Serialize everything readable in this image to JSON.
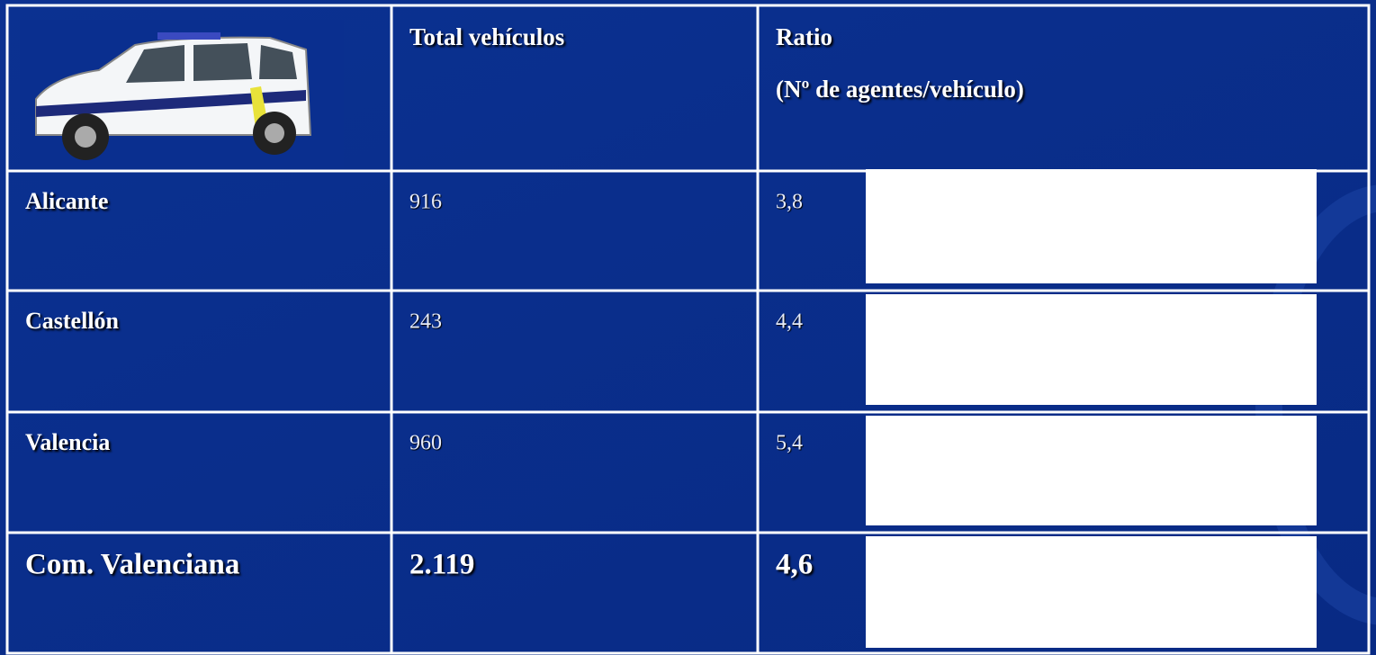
{
  "header": {
    "vehicles": "Total vehículos",
    "ratio": "Ratio",
    "ratio_unit": "(Nº de agentes/vehículo)"
  },
  "table": {
    "rows": [
      {
        "region": "Alicante",
        "vehicles": "916",
        "ratio": {
          "value": 3.8,
          "label": "3,8"
        }
      },
      {
        "region": "Castellón",
        "vehicles": "243",
        "ratio": {
          "value": 4.4,
          "label": "4,4"
        }
      },
      {
        "region": "Valencia",
        "vehicles": "960",
        "ratio": {
          "value": 5.4,
          "label": "5,4"
        }
      },
      {
        "region": "Com. Valenciana",
        "vehicles": "2.119",
        "ratio": {
          "value": 4.6,
          "label": "4,6"
        }
      }
    ]
  }
}
